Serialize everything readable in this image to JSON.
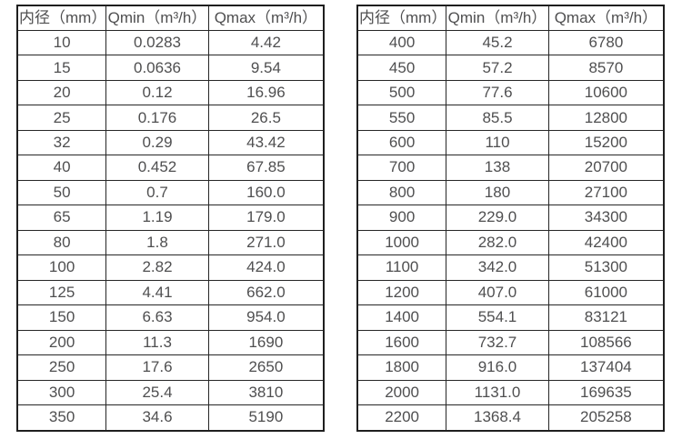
{
  "palette": {
    "background": "#ffffff",
    "border_outer": "#1f1f1f",
    "border_inner": "#262626",
    "text": "#4f4f50"
  },
  "tables": [
    {
      "name": "flow-spec-small-diameters",
      "headers": [
        "内径（mm）",
        "Qmin（m³/h）",
        "Qmax（m³/h）"
      ],
      "rows": [
        [
          "10",
          "0.0283",
          "4.42"
        ],
        [
          "15",
          "0.0636",
          "9.54"
        ],
        [
          "20",
          "0.12",
          "16.96"
        ],
        [
          "25",
          "0.176",
          "26.5"
        ],
        [
          "32",
          "0.29",
          "43.42"
        ],
        [
          "40",
          "0.452",
          "67.85"
        ],
        [
          "50",
          "0.7",
          "160.0"
        ],
        [
          "65",
          "1.19",
          "179.0"
        ],
        [
          "80",
          "1.8",
          "271.0"
        ],
        [
          "100",
          "2.82",
          "424.0"
        ],
        [
          "125",
          "4.41",
          "662.0"
        ],
        [
          "150",
          "6.63",
          "954.0"
        ],
        [
          "200",
          "11.3",
          "1690"
        ],
        [
          "250",
          "17.6",
          "2650"
        ],
        [
          "300",
          "25.4",
          "3810"
        ],
        [
          "350",
          "34.6",
          "5190"
        ]
      ]
    },
    {
      "name": "flow-spec-large-diameters",
      "headers": [
        "内径（mm）",
        "Qmin（m³/h）",
        "Qmax（m³/h）"
      ],
      "rows": [
        [
          "400",
          "45.2",
          "6780"
        ],
        [
          "450",
          "57.2",
          "8570"
        ],
        [
          "500",
          "77.6",
          "10600"
        ],
        [
          "550",
          "85.5",
          "12800"
        ],
        [
          "600",
          "110",
          "15200"
        ],
        [
          "700",
          "138",
          "20700"
        ],
        [
          "800",
          "180",
          "27100"
        ],
        [
          "900",
          "229.0",
          "34300"
        ],
        [
          "1000",
          "282.0",
          "42400"
        ],
        [
          "1100",
          "342.0",
          "51300"
        ],
        [
          "1200",
          "407.0",
          "61000"
        ],
        [
          "1400",
          "554.1",
          "83121"
        ],
        [
          "1600",
          "732.7",
          "108566"
        ],
        [
          "1800",
          "916.0",
          "137404"
        ],
        [
          "2000",
          "1131.0",
          "169635"
        ],
        [
          "2200",
          "1368.4",
          "205258"
        ]
      ]
    }
  ],
  "chart_data": [
    {
      "type": "table",
      "title": "Flow meter specification — small inner diameters",
      "columns": [
        "内径（mm）",
        "Qmin（m³/h）",
        "Qmax（m³/h）"
      ],
      "inner_diameter_mm": [
        10,
        15,
        20,
        25,
        32,
        40,
        50,
        65,
        80,
        100,
        125,
        150,
        200,
        250,
        300,
        350
      ],
      "qmin_m3h": [
        0.0283,
        0.0636,
        0.12,
        0.176,
        0.29,
        0.452,
        0.7,
        1.19,
        1.8,
        2.82,
        4.41,
        6.63,
        11.3,
        17.6,
        25.4,
        34.6
      ],
      "qmax_m3h": [
        4.42,
        9.54,
        16.96,
        26.5,
        43.42,
        67.85,
        160.0,
        179.0,
        271.0,
        424.0,
        662.0,
        954.0,
        1690,
        2650,
        3810,
        5190
      ]
    },
    {
      "type": "table",
      "title": "Flow meter specification — large inner diameters",
      "columns": [
        "内径（mm）",
        "Qmin（m³/h）",
        "Qmax（m³/h）"
      ],
      "inner_diameter_mm": [
        400,
        450,
        500,
        550,
        600,
        700,
        800,
        900,
        1000,
        1100,
        1200,
        1400,
        1600,
        1800,
        2000,
        2200
      ],
      "qmin_m3h": [
        45.2,
        57.2,
        77.6,
        85.5,
        110,
        138,
        180,
        229.0,
        282.0,
        342.0,
        407.0,
        554.1,
        732.7,
        916.0,
        1131.0,
        1368.4
      ],
      "qmax_m3h": [
        6780,
        8570,
        10600,
        12800,
        15200,
        20700,
        27100,
        34300,
        42400,
        51300,
        61000,
        83121,
        108566,
        137404,
        169635,
        205258
      ]
    }
  ]
}
